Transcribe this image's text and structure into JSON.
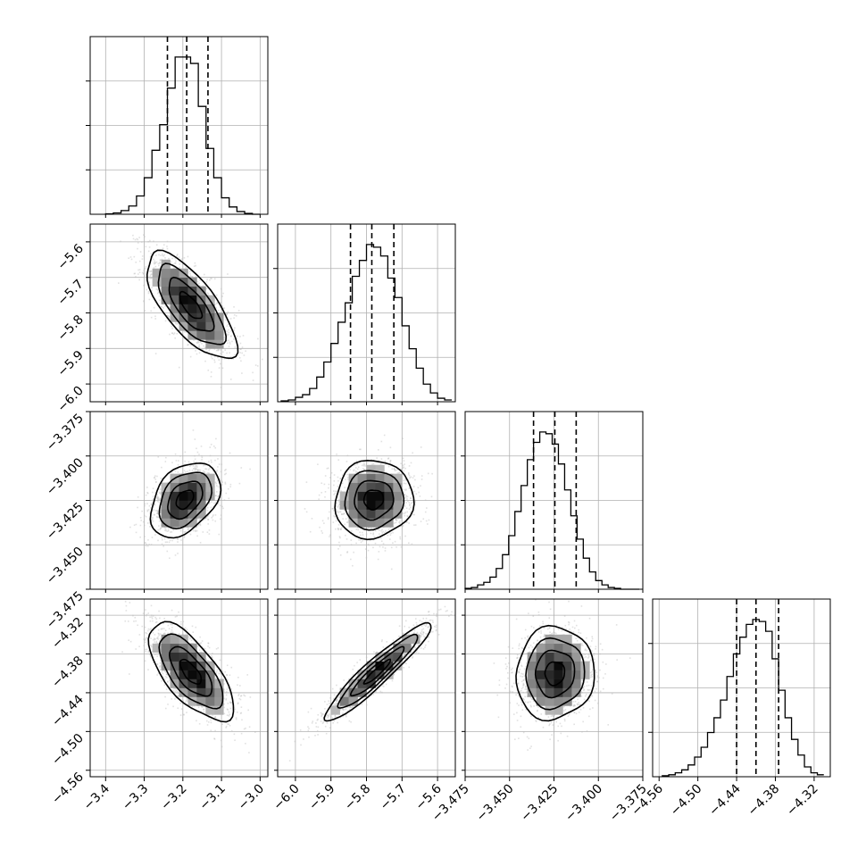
{
  "chart_data": {
    "type": "corner",
    "grid": true,
    "legend": "none",
    "parameters": [
      {
        "range": [
          -3.44,
          -2.98
        ],
        "ticks": [
          -3.4,
          -3.3,
          -3.2,
          -3.1,
          -3.0
        ],
        "tick_labels": [
          "−3.4",
          "−3.3",
          "−3.2",
          "−3.1",
          "−3.0"
        ],
        "quantiles": [
          -3.24,
          -3.19,
          -3.135
        ],
        "hist_edges": [
          -3.4,
          -3.38,
          -3.36,
          -3.34,
          -3.32,
          -3.3,
          -3.28,
          -3.26,
          -3.24,
          -3.22,
          -3.2,
          -3.18,
          -3.16,
          -3.14,
          -3.12,
          -3.1,
          -3.08,
          -3.06,
          -3.04,
          -3.02,
          -3.0
        ],
        "hist_counts": [
          0.5,
          1.5,
          4,
          9,
          20,
          40,
          70,
          98,
          138,
          172,
          172,
          165,
          118,
          72,
          40,
          18,
          8,
          3,
          1,
          0
        ]
      },
      {
        "range": [
          -6.05,
          -5.55
        ],
        "ticks": [
          -6.0,
          -5.9,
          -5.8,
          -5.7,
          -5.6
        ],
        "tick_labels": [
          "−6.0",
          "−5.9",
          "−5.8",
          "−5.7",
          "−5.6"
        ],
        "quantiles": [
          -5.845,
          -5.785,
          -5.723
        ],
        "hist_edges": [
          -6.04,
          -6.02,
          -6.0,
          -5.98,
          -5.96,
          -5.94,
          -5.92,
          -5.9,
          -5.88,
          -5.86,
          -5.84,
          -5.82,
          -5.8,
          -5.78,
          -5.76,
          -5.74,
          -5.72,
          -5.7,
          -5.68,
          -5.66,
          -5.64,
          -5.62,
          -5.6,
          -5.58,
          -5.56
        ],
        "hist_counts": [
          1,
          2,
          5,
          8,
          15,
          28,
          45,
          66,
          90,
          112,
          142,
          160,
          178,
          175,
          165,
          140,
          118,
          86,
          60,
          38,
          20,
          10,
          4,
          2
        ]
      },
      {
        "range": [
          -3.475,
          -3.375
        ],
        "ticks": [
          -3.475,
          -3.45,
          -3.425,
          -3.4,
          -3.375
        ],
        "tick_labels": [
          "−3.475",
          "−3.450",
          "−3.425",
          "−3.400",
          "−3.375"
        ],
        "quantiles": [
          -3.4365,
          -3.4245,
          -3.4125
        ],
        "hist_edges": [
          -3.475,
          -3.4715,
          -3.468,
          -3.4645,
          -3.461,
          -3.4575,
          -3.454,
          -3.4505,
          -3.447,
          -3.4435,
          -3.44,
          -3.4365,
          -3.433,
          -3.4295,
          -3.426,
          -3.4225,
          -3.419,
          -3.4155,
          -3.412,
          -3.4085,
          -3.405,
          -3.4015,
          -3.398,
          -3.3945,
          -3.391,
          -3.3875,
          -3.384,
          -3.3805,
          -3.377
        ],
        "hist_counts": [
          1,
          2,
          5,
          8,
          14,
          24,
          40,
          62,
          90,
          120,
          150,
          170,
          182,
          180,
          168,
          145,
          115,
          85,
          58,
          36,
          20,
          10,
          5,
          2,
          1,
          0,
          0,
          0
        ]
      },
      {
        "range": [
          -4.57,
          -4.295
        ],
        "ticks": [
          -4.56,
          -4.5,
          -4.44,
          -4.38,
          -4.32
        ],
        "tick_labels": [
          "−4.56",
          "−4.50",
          "−4.44",
          "−4.38",
          "−4.32"
        ],
        "quantiles": [
          -4.44,
          -4.41,
          -4.375
        ],
        "hist_edges": [
          -4.555,
          -4.545,
          -4.535,
          -4.525,
          -4.515,
          -4.505,
          -4.495,
          -4.485,
          -4.475,
          -4.465,
          -4.455,
          -4.445,
          -4.435,
          -4.425,
          -4.415,
          -4.405,
          -4.395,
          -4.385,
          -4.375,
          -4.365,
          -4.355,
          -4.345,
          -4.335,
          -4.325,
          -4.315,
          -4.305
        ],
        "hist_counts": [
          1,
          2,
          4,
          7,
          12,
          20,
          30,
          45,
          60,
          78,
          102,
          125,
          142,
          155,
          160,
          158,
          148,
          120,
          88,
          60,
          38,
          22,
          10,
          4,
          2
        ]
      }
    ],
    "pairs": [
      {
        "row": 1,
        "col": 0,
        "mean": [
          -3.18,
          -5.78
        ],
        "sd": [
          0.058,
          0.075
        ],
        "rho": -0.72
      },
      {
        "row": 2,
        "col": 0,
        "mean": [
          -3.195,
          -3.4245
        ],
        "sd": [
          0.045,
          0.0105
        ],
        "rho": 0.38
      },
      {
        "row": 2,
        "col": 1,
        "mean": [
          -5.78,
          -3.4245
        ],
        "sd": [
          0.055,
          0.011
        ],
        "rho": 0.05
      },
      {
        "row": 3,
        "col": 0,
        "mean": [
          -3.18,
          -4.408
        ],
        "sd": [
          0.055,
          0.038
        ],
        "rho": -0.68
      },
      {
        "row": 3,
        "col": 1,
        "mean": [
          -5.77,
          -4.408
        ],
        "sd": [
          0.075,
          0.038
        ],
        "rho": 0.94
      },
      {
        "row": 3,
        "col": 2,
        "mean": [
          -3.4245,
          -4.41
        ],
        "sd": [
          0.011,
          0.036
        ],
        "rho": 0.05
      }
    ]
  }
}
